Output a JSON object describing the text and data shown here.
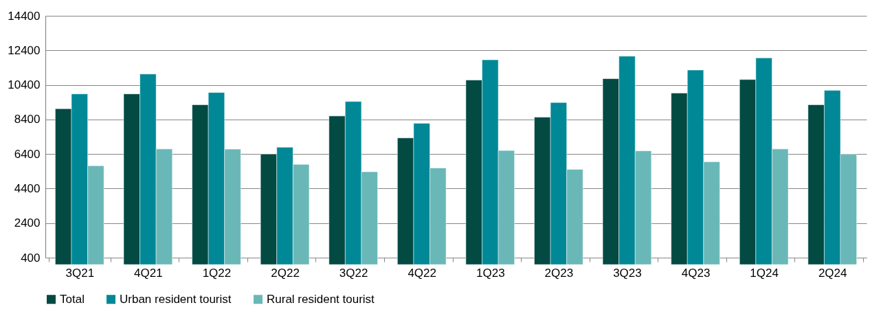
{
  "chart_data": {
    "type": "bar",
    "categories": [
      "3Q21",
      "4Q21",
      "1Q22",
      "2Q22",
      "3Q22",
      "4Q22",
      "1Q23",
      "2Q23",
      "3Q23",
      "4Q23",
      "1Q24",
      "2Q24"
    ],
    "series": [
      {
        "name": "Total",
        "color": "#034a43",
        "values": [
          9020,
          9880,
          9250,
          6400,
          8600,
          7330,
          10680,
          8530,
          10760,
          9930,
          10710,
          9250
        ]
      },
      {
        "name": "Urban resident tourist",
        "color": "#008896",
        "values": [
          9880,
          11030,
          9960,
          6790,
          9440,
          8180,
          11850,
          9380,
          12060,
          11260,
          11960,
          10080
        ]
      },
      {
        "name": "Rural resident tourist",
        "color": "#69b8b7",
        "values": [
          5720,
          6690,
          6680,
          5800,
          5370,
          5590,
          6600,
          5510,
          6580,
          5950,
          6690,
          6380
        ]
      }
    ],
    "ylim": [
      400,
      14400
    ],
    "yticks": [
      400,
      2400,
      4400,
      6400,
      8400,
      10400,
      12400,
      14400
    ],
    "grid": "y",
    "legend": "bottom"
  }
}
